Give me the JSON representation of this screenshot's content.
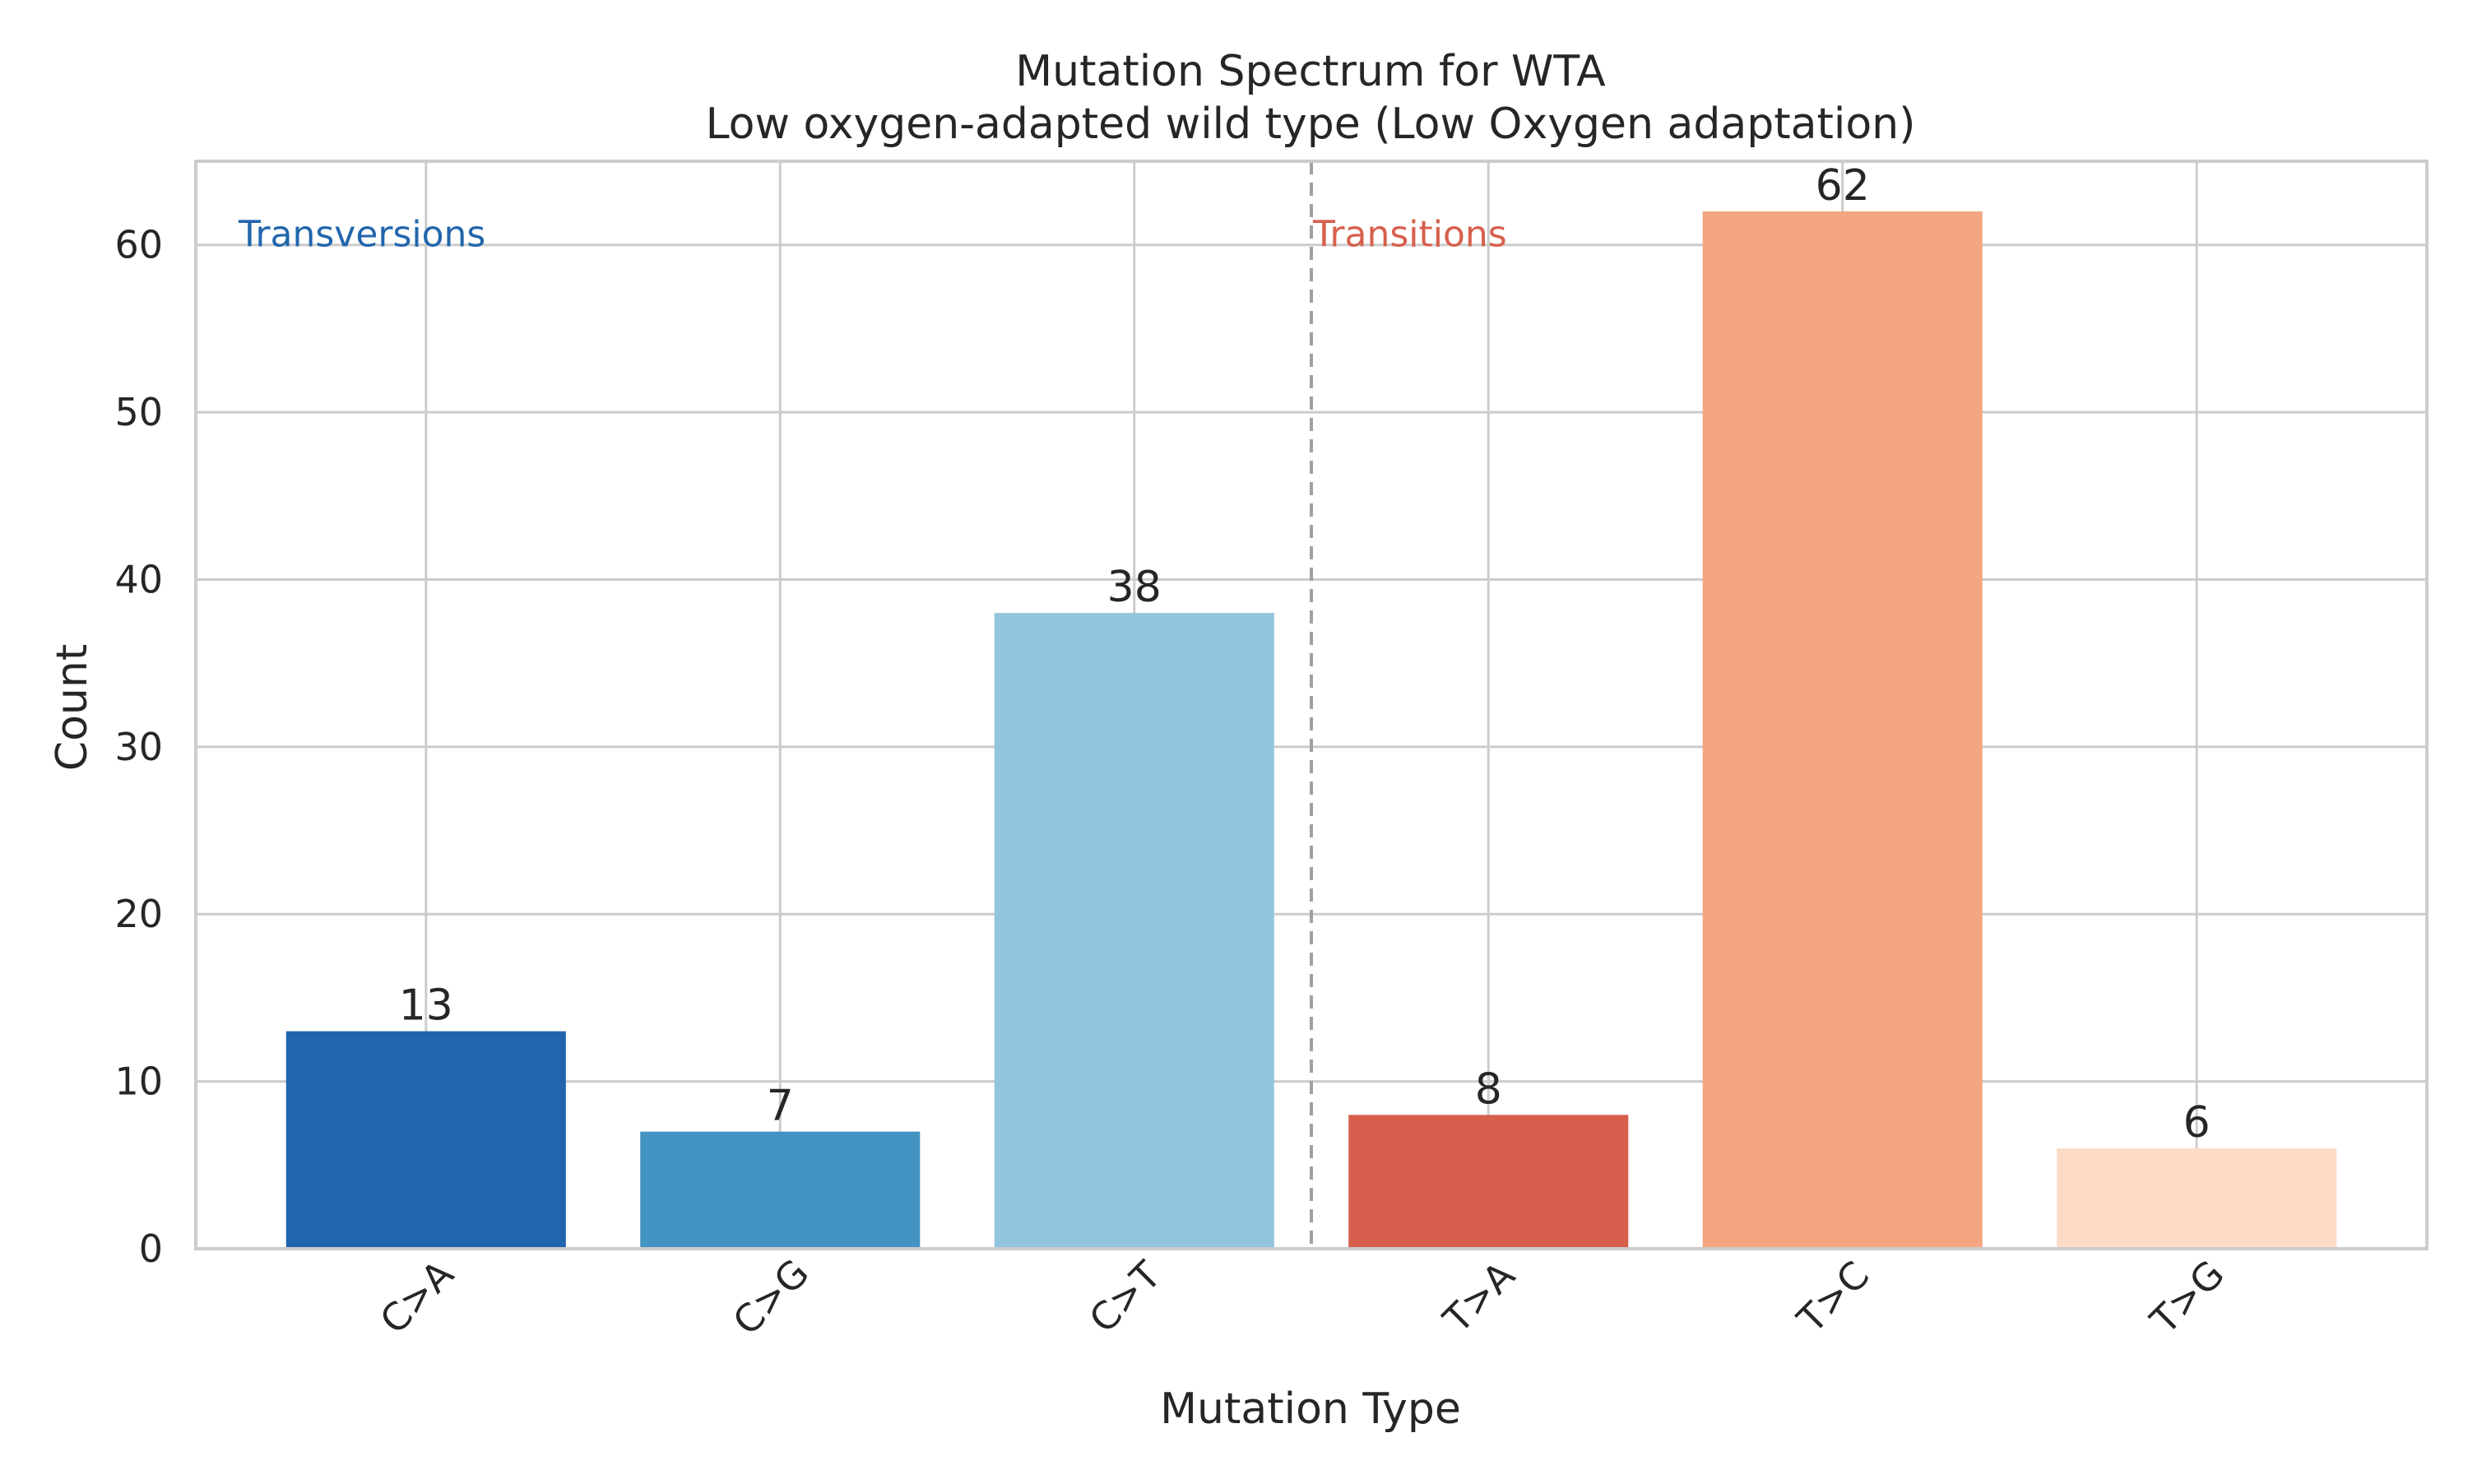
{
  "chart_data": {
    "type": "bar",
    "title": "Mutation Spectrum for WTA",
    "subtitle": "Low oxygen-adapted wild type (Low Oxygen adaptation)",
    "xlabel": "Mutation Type",
    "ylabel": "Count",
    "categories": [
      "C>A",
      "C>G",
      "C>T",
      "T>A",
      "T>C",
      "T>G"
    ],
    "values": [
      13,
      7,
      38,
      8,
      62,
      6
    ],
    "colors": [
      "#2166ac",
      "#4393c3",
      "#92c5de",
      "#d6604d",
      "#f4a582",
      "#fddbc7"
    ],
    "ylim": [
      0,
      65
    ],
    "yticks": [
      0,
      10,
      20,
      30,
      40,
      50,
      60
    ],
    "grid": true,
    "annotations": [
      {
        "text": "Transversions",
        "color": "#2166ac"
      },
      {
        "text": "Transitions",
        "color": "#d6604d"
      }
    ],
    "divider_between": [
      2,
      3
    ]
  }
}
